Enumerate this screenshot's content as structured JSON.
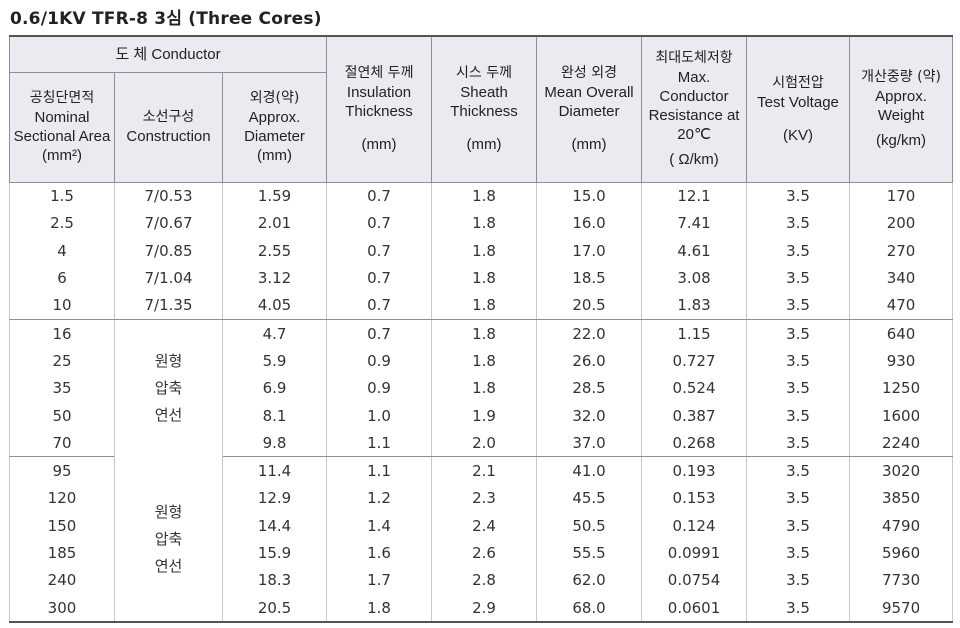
{
  "title": "0.6/1KV TFR-8 3심 (Three Cores)",
  "header": {
    "conductor_group": "도 체 Conductor",
    "area": {
      "ko": "공칭단면적",
      "en": "Nominal Sectional Area",
      "unit": "(mm²)"
    },
    "construction": {
      "ko": "소선구성",
      "en": "Construction"
    },
    "diameter": {
      "ko": "외경(약)",
      "en": "Approx. Diameter",
      "unit": "(mm)"
    },
    "insulation": {
      "ko": "절연체 두께",
      "en": "Insulation Thickness",
      "unit": "(mm)"
    },
    "sheath": {
      "ko": "시스 두께",
      "en": "Sheath Thickness",
      "unit": "(mm)"
    },
    "overall": {
      "ko": "완성 외경",
      "en": "Mean Overall Diameter",
      "unit": "(mm)"
    },
    "resistance": {
      "ko": "최대도체저항",
      "en": "Max. Conductor Resistance at 20℃",
      "unit": "( Ω/km)"
    },
    "voltage": {
      "ko": "시험전압",
      "en": "Test Voltage",
      "unit": "(KV)"
    },
    "weight": {
      "ko": "개산중량 (약)",
      "en": "Approx. Weight",
      "unit": "(kg/km)"
    }
  },
  "compressed_label": [
    "원형",
    "압축",
    "연선"
  ],
  "rows": [
    [
      "1.5",
      "7/0.53",
      "1.59",
      "0.7",
      "1.8",
      "15.0",
      "12.1",
      "3.5",
      "170"
    ],
    [
      "2.5",
      "7/0.67",
      "2.01",
      "0.7",
      "1.8",
      "16.0",
      "7.41",
      "3.5",
      "200"
    ],
    [
      "4",
      "7/0.85",
      "2.55",
      "0.7",
      "1.8",
      "17.0",
      "4.61",
      "3.5",
      "270"
    ],
    [
      "6",
      "7/1.04",
      "3.12",
      "0.7",
      "1.8",
      "18.5",
      "3.08",
      "3.5",
      "340"
    ],
    [
      "10",
      "7/1.35",
      "4.05",
      "0.7",
      "1.8",
      "20.5",
      "1.83",
      "3.5",
      "470"
    ],
    [
      "16",
      "",
      "4.7",
      "0.7",
      "1.8",
      "22.0",
      "1.15",
      "3.5",
      "640"
    ],
    [
      "25",
      "",
      "5.9",
      "0.9",
      "1.8",
      "26.0",
      "0.727",
      "3.5",
      "930"
    ],
    [
      "35",
      "",
      "6.9",
      "0.9",
      "1.8",
      "28.5",
      "0.524",
      "3.5",
      "1250"
    ],
    [
      "50",
      "",
      "8.1",
      "1.0",
      "1.9",
      "32.0",
      "0.387",
      "3.5",
      "1600"
    ],
    [
      "70",
      "",
      "9.8",
      "1.1",
      "2.0",
      "37.0",
      "0.268",
      "3.5",
      "2240"
    ],
    [
      "95",
      "",
      "11.4",
      "1.1",
      "2.1",
      "41.0",
      "0.193",
      "3.5",
      "3020"
    ],
    [
      "120",
      "",
      "12.9",
      "1.2",
      "2.3",
      "45.5",
      "0.153",
      "3.5",
      "3850"
    ],
    [
      "150",
      "",
      "14.4",
      "1.4",
      "2.4",
      "50.5",
      "0.124",
      "3.5",
      "4790"
    ],
    [
      "185",
      "",
      "15.9",
      "1.6",
      "2.6",
      "55.5",
      "0.0991",
      "3.5",
      "5960"
    ],
    [
      "240",
      "",
      "18.3",
      "1.7",
      "2.8",
      "62.0",
      "0.0754",
      "3.5",
      "7730"
    ],
    [
      "300",
      "",
      "20.5",
      "1.8",
      "2.9",
      "68.0",
      "0.0601",
      "3.5",
      "9570"
    ]
  ]
}
